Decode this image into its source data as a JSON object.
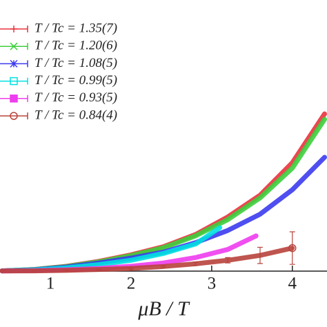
{
  "chart_data": {
    "type": "line",
    "xlabel": "μB / T",
    "xlim": [
      0.375,
      4.43
    ],
    "ylim": [
      0,
      100
    ],
    "xticks": [
      1,
      2,
      3,
      4
    ],
    "legend": "upper left",
    "series": [
      {
        "name": "T / Tc = 1.35(7)",
        "color": "#e8333c",
        "marker": "plus",
        "x": [
          0.4,
          0.8,
          1.2,
          1.6,
          2.0,
          2.4,
          2.8,
          3.2,
          3.6,
          4.0,
          4.4
        ],
        "values": [
          0.1,
          0.6,
          1.8,
          3.6,
          6,
          9,
          13.5,
          20,
          28,
          40,
          58
        ]
      },
      {
        "name": "T / Tc = 1.20(6)",
        "color": "#3ccf3c",
        "marker": "cross",
        "x": [
          0.4,
          0.8,
          1.2,
          1.6,
          2.0,
          2.4,
          2.8,
          3.2,
          3.6,
          4.0,
          4.4
        ],
        "values": [
          0.1,
          0.6,
          1.7,
          3.4,
          5.7,
          8.6,
          13,
          19,
          27,
          38,
          56
        ]
      },
      {
        "name": "T / Tc = 1.08(5)",
        "color": "#3b3bef",
        "marker": "star",
        "x": [
          0.4,
          0.8,
          1.2,
          1.6,
          2.0,
          2.4,
          2.8,
          3.2,
          3.6,
          4.0,
          4.4
        ],
        "values": [
          0.1,
          0.5,
          1.5,
          3,
          4.8,
          7,
          10.5,
          15,
          21,
          30,
          42
        ]
      },
      {
        "name": "T / Tc = 0.99(5)",
        "color": "#00e0e0",
        "marker": "square-open",
        "x": [
          0.4,
          0.8,
          1.2,
          1.6,
          2.0,
          2.4,
          2.8,
          3.1
        ],
        "values": [
          0.1,
          0.4,
          1.2,
          2.4,
          4,
          6.5,
          10,
          16
        ]
      },
      {
        "name": "T / Tc = 0.93(5)",
        "color": "#ee3cee",
        "marker": "square",
        "x": [
          0.4,
          0.8,
          1.2,
          1.6,
          2.0,
          2.4,
          2.8,
          3.2,
          3.55
        ],
        "values": [
          0.05,
          0.2,
          0.5,
          1,
          1.8,
          3,
          5,
          8,
          13
        ]
      },
      {
        "name": "T / Tc = 0.84(4)",
        "color": "#b8433c",
        "marker": "circle-open",
        "x": [
          0.4,
          0.8,
          1.2,
          1.6,
          2.0,
          2.4,
          2.8,
          3.2,
          3.6,
          4.0
        ],
        "values": [
          0.05,
          0.1,
          0.3,
          0.6,
          1,
          1.7,
          2.7,
          4,
          5.8,
          8.5
        ],
        "errors": [
          0,
          0,
          0.1,
          0.1,
          0.2,
          0.3,
          0.6,
          1,
          3,
          6
        ]
      }
    ]
  }
}
